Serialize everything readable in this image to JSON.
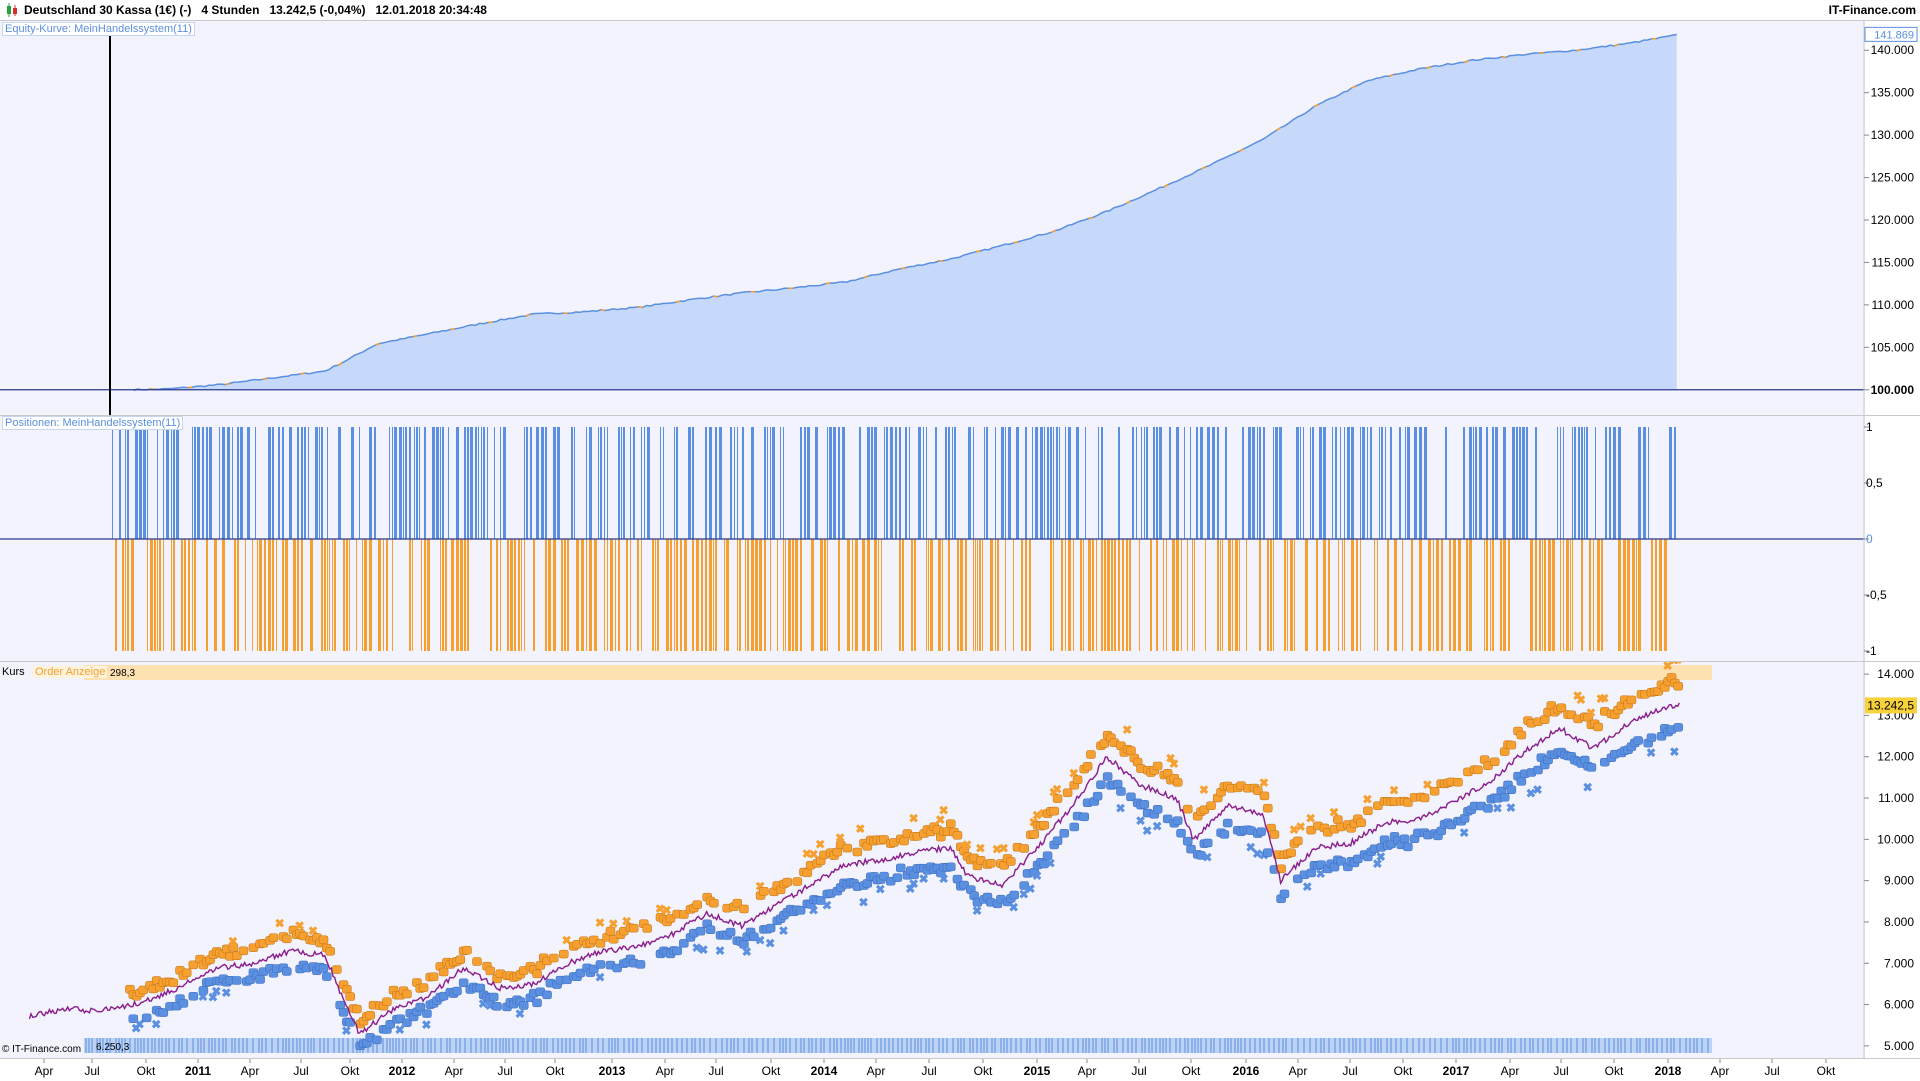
{
  "header": {
    "instrument": "Deutschland 30 Kassa (1€) (-)",
    "timeframe": "4 Stunden",
    "quote": "13.242,5 (-0,04%)",
    "timestamp": "12.01.2018 20:34:48",
    "brand": "IT-Finance.com"
  },
  "colors": {
    "blue": "#5b8fe0",
    "orange": "#f5a030",
    "equity_fill": "#c7d9fa",
    "navy": "#2b3a8c",
    "panel_bg": "#f2f3fc",
    "last_price_bg": "#f7d23a"
  },
  "equity_panel": {
    "label": "Equity-Kurve: MeinHandelssystem(11)",
    "last_value_label": "141.869"
  },
  "positions_panel": {
    "label": "Positionen: MeinHandelssystem(11)"
  },
  "price_panel": {
    "label_kurs": "Kurs",
    "label_order": "Order Anzeige",
    "last_price_label": "13.242,5",
    "top_strip_value": "298,3",
    "bottom_strip_value": "6.250,3",
    "watermark": "© IT-Finance.com"
  },
  "x_axis": {
    "ticks": [
      "Apr",
      "Jul",
      "Okt",
      "2011",
      "Apr",
      "Jul",
      "Okt",
      "2012",
      "Apr",
      "Jul",
      "Okt",
      "2013",
      "Apr",
      "Jul",
      "Okt",
      "2014",
      "Apr",
      "Jul",
      "Okt",
      "2015",
      "Apr",
      "Jul",
      "Okt",
      "2016",
      "Apr",
      "Jul",
      "Okt",
      "2017",
      "Apr",
      "Jul",
      "Okt",
      "2018",
      "Apr",
      "Jul",
      "Okt"
    ],
    "positions_x": [
      44,
      92,
      146,
      198,
      250,
      301,
      350,
      402,
      454,
      505,
      555,
      612,
      665,
      716,
      771,
      824,
      876,
      929,
      983,
      1037,
      1087,
      1139,
      1191,
      1246,
      1298,
      1350,
      1403,
      1456,
      1510,
      1561,
      1614,
      1668,
      1720,
      1772,
      1826
    ],
    "bold": [
      false,
      false,
      false,
      true,
      false,
      false,
      false,
      true,
      false,
      false,
      false,
      true,
      false,
      false,
      false,
      true,
      false,
      false,
      false,
      true,
      false,
      false,
      false,
      true,
      false,
      false,
      false,
      true,
      false,
      false,
      false,
      true,
      false,
      false,
      false
    ]
  },
  "chart_data": [
    {
      "type": "area",
      "name": "Equity-Kurve: MeinHandelssystem(11)",
      "x_dates": [
        "2010-08",
        "2010-10",
        "2011-01",
        "2011-04",
        "2011-07",
        "2011-08",
        "2011-10",
        "2012-01",
        "2012-04",
        "2012-07",
        "2012-10",
        "2013-01",
        "2013-04",
        "2013-07",
        "2013-10",
        "2014-01",
        "2014-04",
        "2014-07",
        "2014-10",
        "2015-01",
        "2015-04",
        "2015-07",
        "2015-10",
        "2016-01",
        "2016-04",
        "2016-07",
        "2016-10",
        "2017-01",
        "2017-04",
        "2017-07",
        "2017-10",
        "2018-01"
      ],
      "values": [
        100000,
        100100,
        100600,
        101400,
        102200,
        103200,
        105400,
        106600,
        107800,
        108900,
        109200,
        109700,
        110600,
        111400,
        112000,
        112700,
        114200,
        115400,
        117000,
        118700,
        121000,
        123700,
        126500,
        129500,
        133400,
        136400,
        137800,
        138800,
        139500,
        140000,
        140800,
        141869
      ],
      "y_ticks": [
        100000,
        105000,
        110000,
        115000,
        120000,
        125000,
        130000,
        135000,
        140000
      ],
      "y_tick_labels": [
        "100.000",
        "105.000",
        "110.000",
        "115.000",
        "120.000",
        "125.000",
        "130.000",
        "135.000",
        "140.000"
      ],
      "ylim": [
        99500,
        142500
      ],
      "baseline": 100000
    },
    {
      "type": "bar",
      "name": "Positionen: MeinHandelssystem(11)",
      "values_range": [
        -1,
        1
      ],
      "y_ticks": [
        1,
        0.5,
        0,
        -0.5,
        -1
      ],
      "y_tick_labels": [
        "1",
        "0,5",
        "0",
        "-0,5",
        "-1"
      ],
      "series": [
        {
          "name": "long",
          "value": 1
        },
        {
          "name": "short",
          "value": -1
        }
      ]
    },
    {
      "type": "line",
      "name": "Kurs",
      "x_dates": [
        "2010-02",
        "2010-04",
        "2010-06",
        "2010-08",
        "2010-10",
        "2011-01",
        "2011-03",
        "2011-05",
        "2011-07",
        "2011-08",
        "2011-09",
        "2011-11",
        "2012-01",
        "2012-03",
        "2012-05",
        "2012-07",
        "2012-09",
        "2012-11",
        "2013-01",
        "2013-03",
        "2013-05",
        "2013-07",
        "2013-09",
        "2013-11",
        "2014-01",
        "2014-03",
        "2014-05",
        "2014-07",
        "2014-08",
        "2014-10",
        "2014-12",
        "2015-02",
        "2015-04",
        "2015-06",
        "2015-08",
        "2015-09",
        "2015-11",
        "2016-01",
        "2016-02",
        "2016-04",
        "2016-06",
        "2016-08",
        "2016-10",
        "2016-12",
        "2017-02",
        "2017-04",
        "2017-06",
        "2017-08",
        "2017-10",
        "2017-12",
        "2018-01"
      ],
      "values": [
        5700,
        5900,
        5850,
        6000,
        6300,
        6900,
        7000,
        7300,
        7200,
        6200,
        5300,
        5900,
        6200,
        6900,
        6400,
        6500,
        7000,
        7300,
        7400,
        7700,
        8200,
        7900,
        8400,
        8900,
        9400,
        9500,
        9700,
        9800,
        9100,
        8900,
        9800,
        10800,
        12000,
        11300,
        11000,
        10000,
        10800,
        10600,
        9000,
        9800,
        9900,
        10400,
        10500,
        10900,
        11400,
        12100,
        12700,
        12200,
        12800,
        13200,
        13242.5
      ],
      "y_ticks": [
        5000,
        6000,
        7000,
        8000,
        9000,
        10000,
        11000,
        12000,
        13000,
        14000
      ],
      "y_tick_labels": [
        "5.000",
        "6.000",
        "7.000",
        "8.000",
        "9.000",
        "10.000",
        "11.000",
        "12.000",
        "13.000",
        "14.000"
      ],
      "ylim": [
        4900,
        14100
      ],
      "last_price": 13242.5
    }
  ]
}
